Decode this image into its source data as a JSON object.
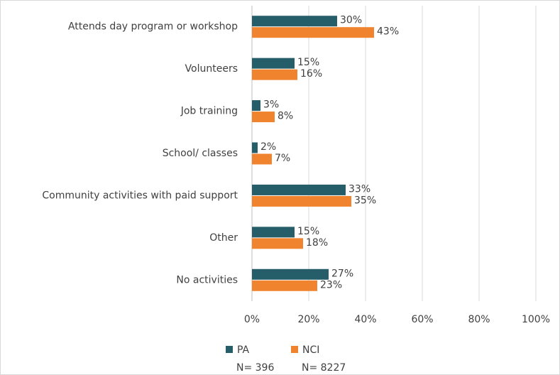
{
  "chart_data": {
    "type": "bar",
    "orientation": "horizontal",
    "categories": [
      "Attends day program or workshop",
      "Volunteers",
      "Job training",
      "School/ classes",
      "Community activities with paid support",
      "Other",
      "No activities"
    ],
    "series": [
      {
        "name": "PA",
        "color": "#255e69",
        "values": [
          30,
          15,
          3,
          2,
          33,
          15,
          27
        ],
        "value_labels": [
          "30%",
          "15%",
          "3%",
          "2%",
          "33%",
          "15%",
          "27%"
        ],
        "note": "N= 396"
      },
      {
        "name": "NCI",
        "color": "#f0832e",
        "values": [
          43,
          16,
          8,
          7,
          35,
          18,
          23
        ],
        "value_labels": [
          "43%",
          "16%",
          "8%",
          "7%",
          "35%",
          "18%",
          "23%"
        ],
        "note": "N= 8227"
      }
    ],
    "xlim": [
      0,
      100
    ],
    "xticks": [
      {
        "value": 0,
        "label": "0%"
      },
      {
        "value": 20,
        "label": "20%"
      },
      {
        "value": 40,
        "label": "40%"
      },
      {
        "value": 60,
        "label": "60%"
      },
      {
        "value": 80,
        "label": "80%"
      },
      {
        "value": 100,
        "label": "100%"
      }
    ],
    "grid": true,
    "legend": "bottom"
  }
}
